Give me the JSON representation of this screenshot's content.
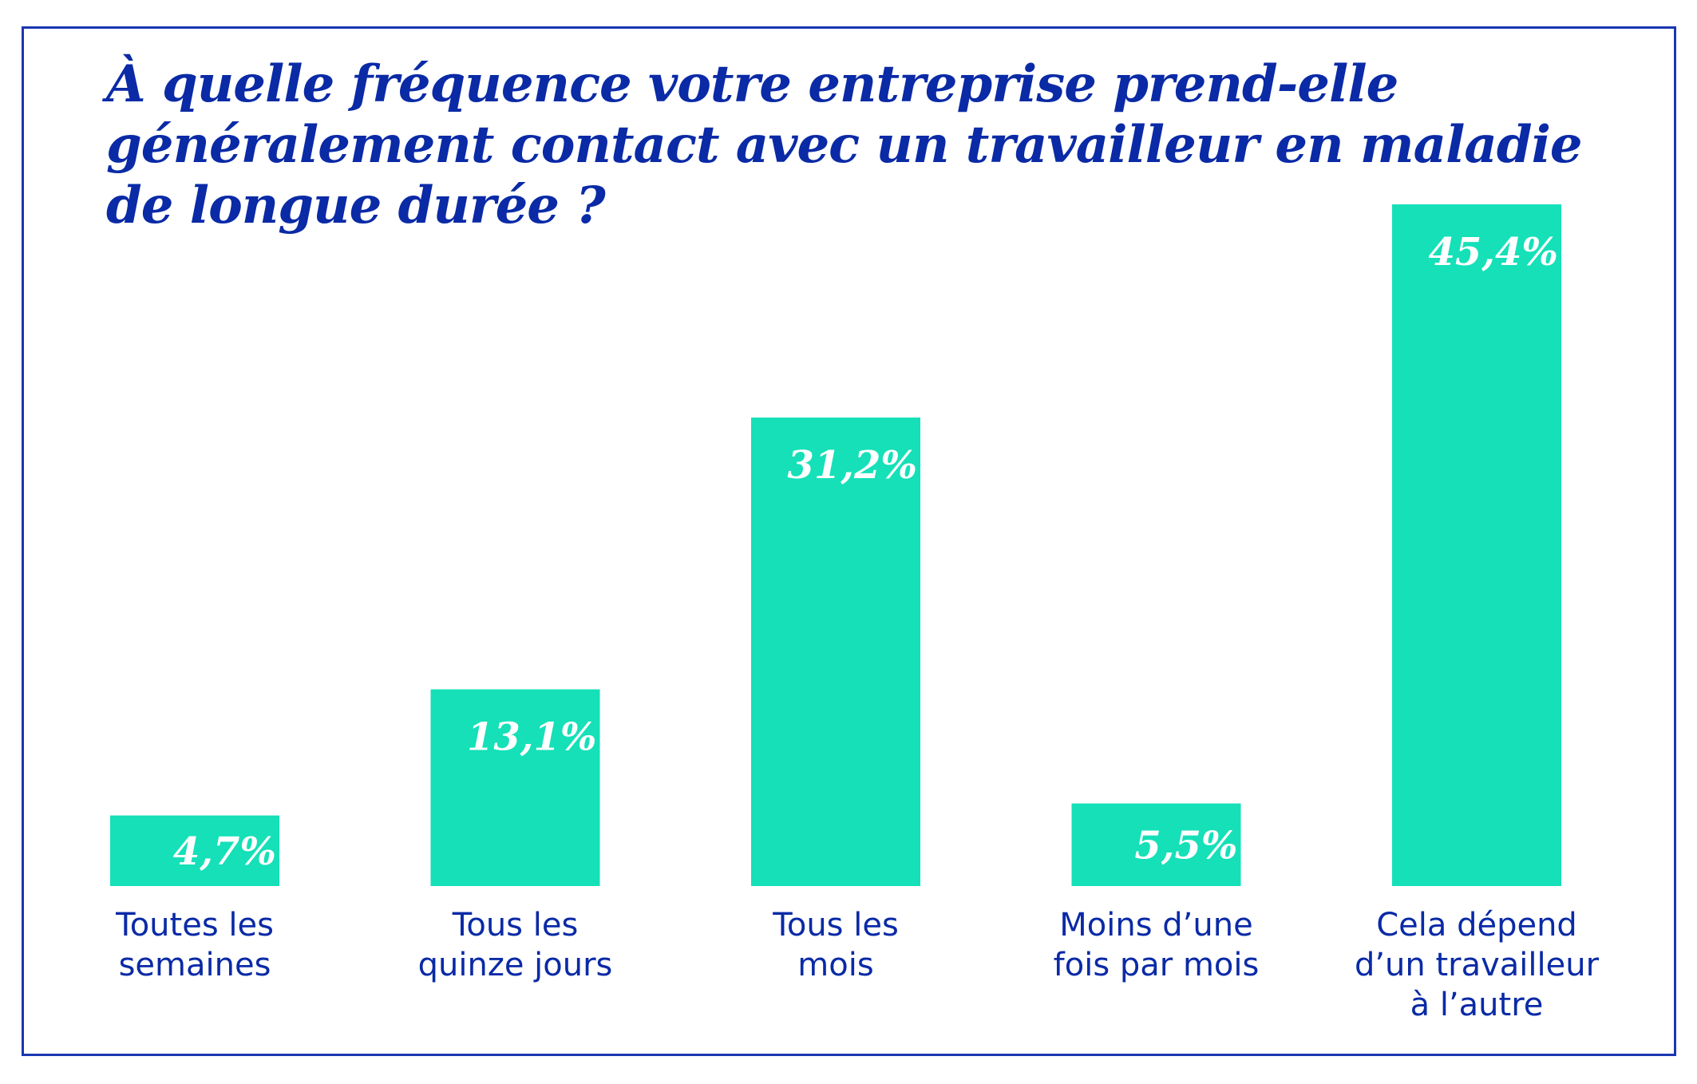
{
  "colors": {
    "bar": "#15e0b8",
    "title": "#0a2aa6",
    "frame": "#1a36b0",
    "bar_label": "#ffffff"
  },
  "chart_data": {
    "type": "bar",
    "title": "À quelle fréquence votre entreprise prend-elle généralement contact avec un travailleur en maladie de longue durée ?",
    "title_lines": [
      "À quelle fréquence votre entreprise prend-elle",
      "généralement contact avec un travailleur en maladie",
      "de longue durée ?"
    ],
    "categories": [
      "Toutes les semaines",
      "Tous les quinze jours",
      "Tous les mois",
      "Moins d’une fois par mois",
      "Cela dépend d’un travailleur à l’autre"
    ],
    "category_lines": [
      [
        "Toutes les",
        "semaines"
      ],
      [
        "Tous les",
        "quinze jours"
      ],
      [
        "Tous les",
        "mois"
      ],
      [
        "Moins d’une",
        "fois par mois"
      ],
      [
        "Cela dépend",
        "d’un travailleur",
        "à l’autre"
      ]
    ],
    "values": [
      4.7,
      13.1,
      31.2,
      5.5,
      45.4
    ],
    "data_labels": [
      "4,7%",
      "13,1%",
      "31,2%",
      "5,5%",
      "45,4%"
    ],
    "unit": "%",
    "xlabel": "",
    "ylabel": "",
    "ylim": [
      0,
      45.4
    ],
    "grid": false,
    "legend": "none",
    "axes_visible": false
  }
}
